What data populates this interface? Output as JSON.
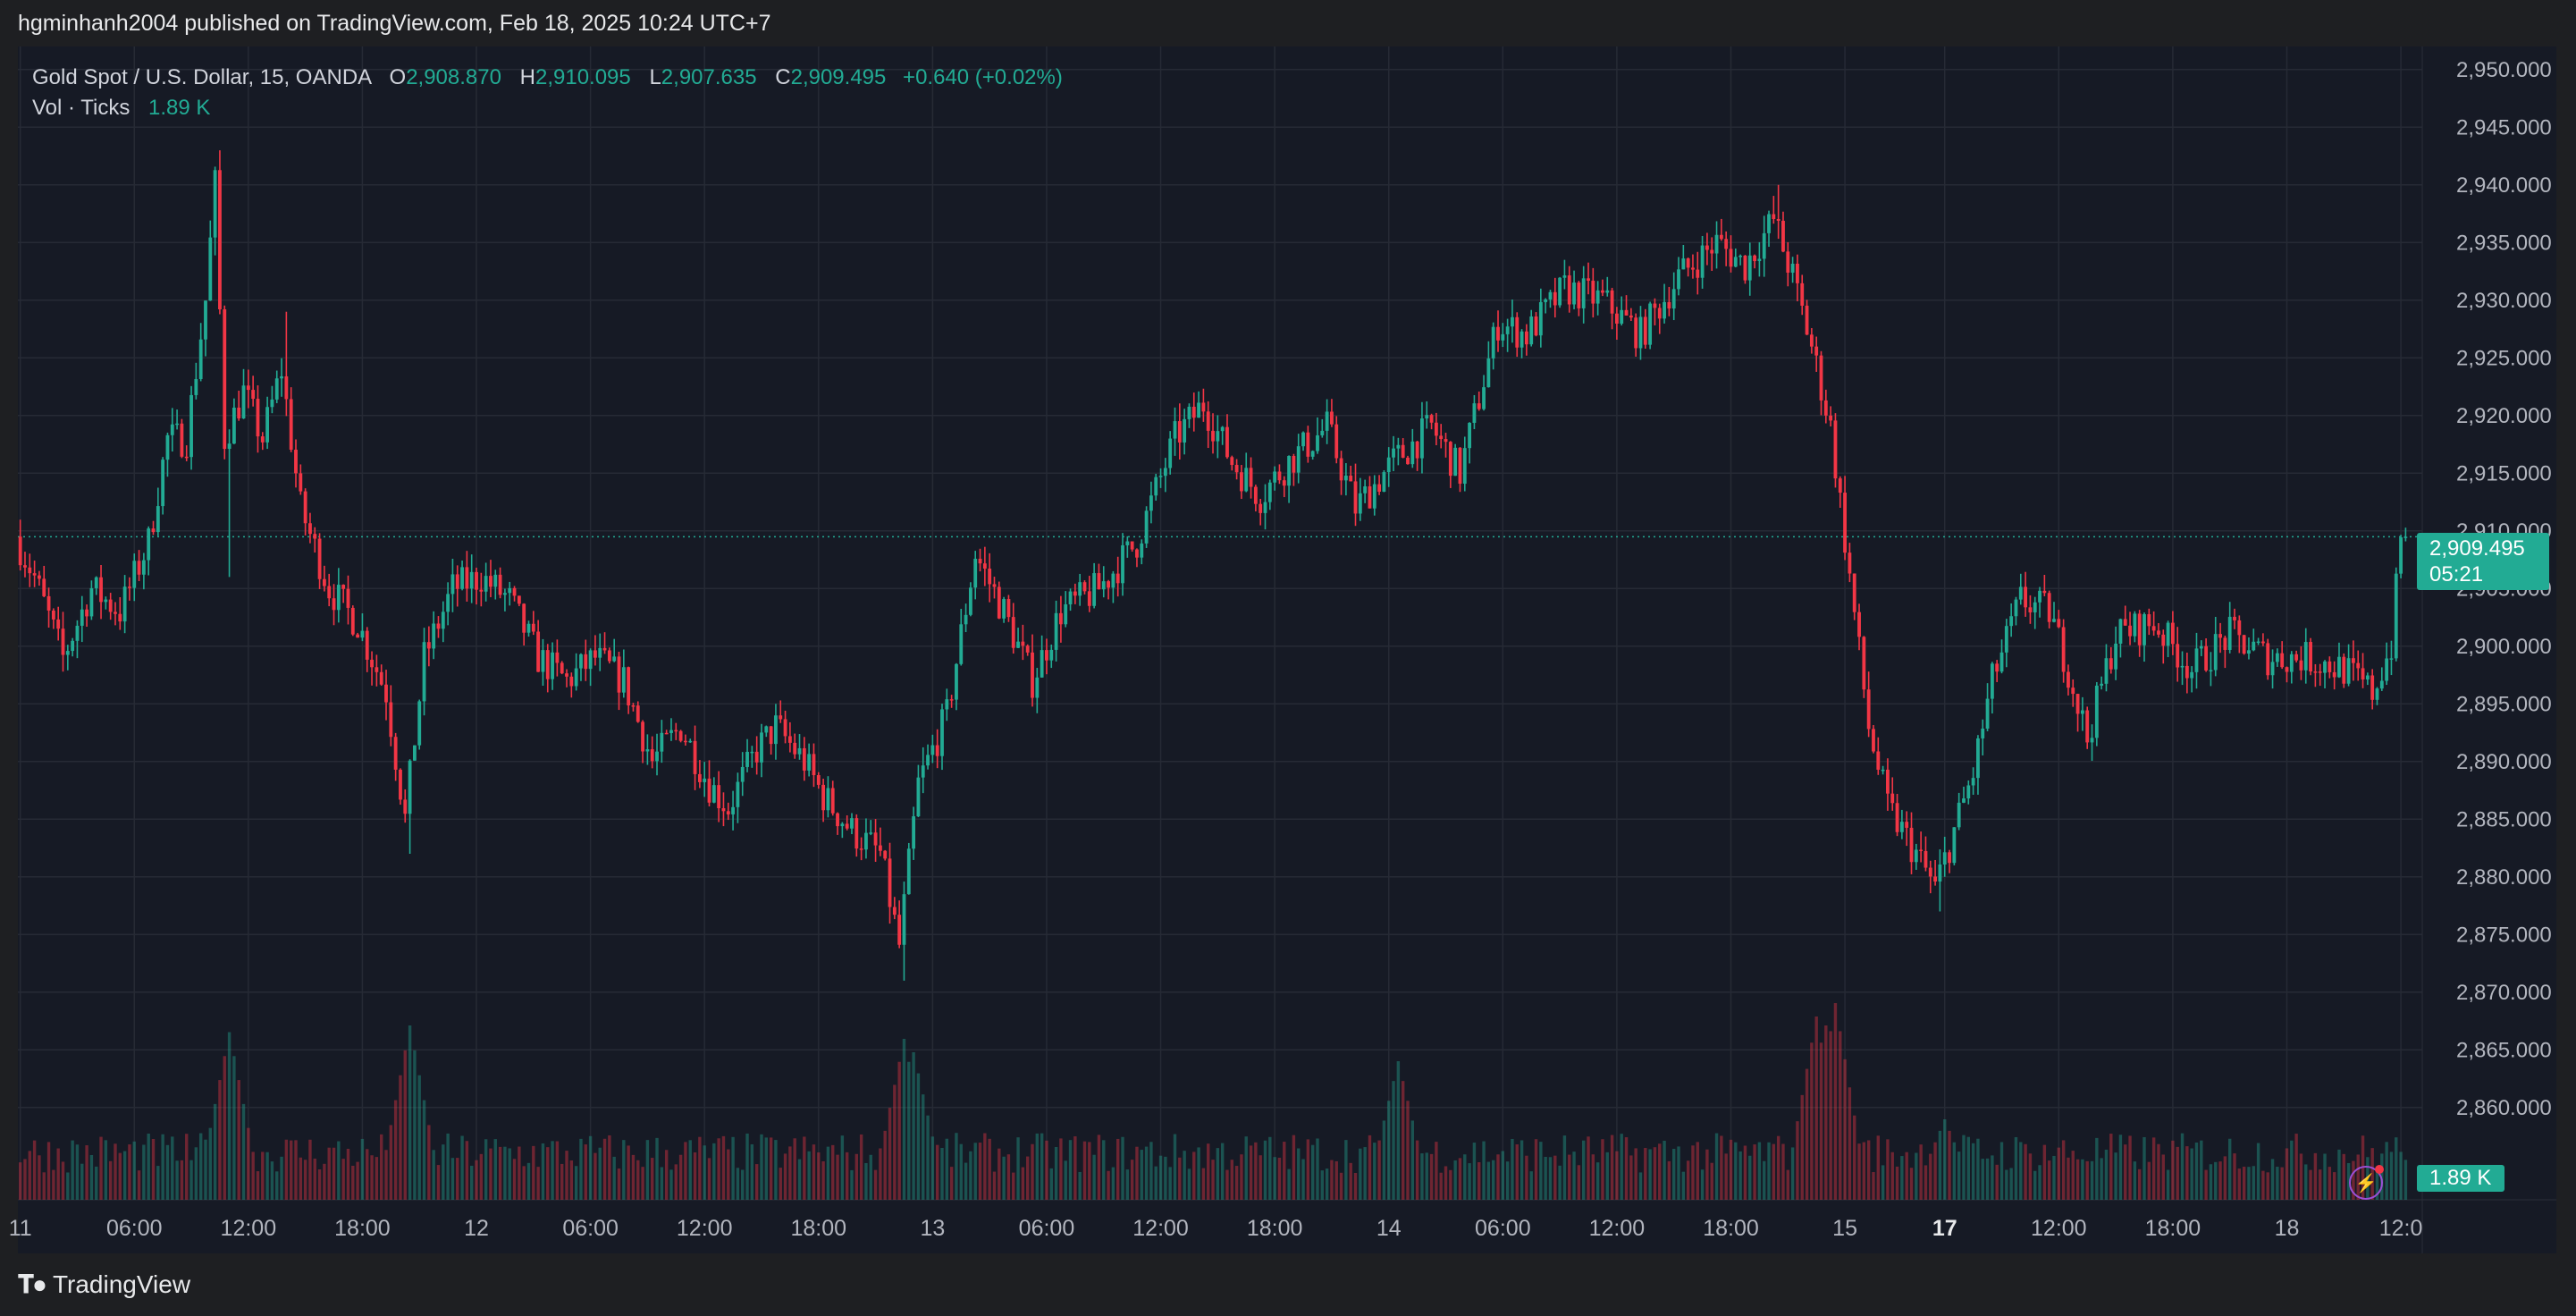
{
  "publish_line": "hgminhanh2004 published on TradingView.com, Feb 18, 2025 10:24 UTC+7",
  "legend": {
    "symbol": "Gold Spot / U.S. Dollar, 15, OANDA",
    "open_label": "O",
    "open": "2,908.870",
    "high_label": "H",
    "high": "2,910.095",
    "low_label": "L",
    "low": "2,907.635",
    "close_label": "C",
    "close": "2,909.495",
    "change": "+0.640 (+0.02%)",
    "volume_label": "Vol · Ticks",
    "volume": "1.89 K"
  },
  "last_price_badge": {
    "price": "2,909.495",
    "countdown": "05:21"
  },
  "volume_badge": "1.89 K",
  "branding": {
    "logo": "TradingView"
  },
  "colors": {
    "up": "#22ab94",
    "down": "#f23645",
    "background": "#161a25",
    "grid": "#262a35",
    "text": "#b2b5be"
  },
  "chart_data": {
    "type": "candlestick",
    "timeframe": "15",
    "price_axis": {
      "ylim": [
        2852,
        2952
      ],
      "ticks": [
        2860,
        2865,
        2870,
        2875,
        2880,
        2885,
        2890,
        2895,
        2900,
        2905,
        2910,
        2915,
        2920,
        2925,
        2930,
        2935,
        2940,
        2945,
        2950
      ],
      "tick_labels": [
        "2,860.000",
        "2,865.000",
        "2,870.000",
        "2,875.000",
        "2,880.000",
        "2,885.000",
        "2,890.000",
        "2,895.000",
        "2,900.000",
        "2,905.000",
        "2,910.000",
        "2,915.000",
        "2,920.000",
        "2,925.000",
        "2,930.000",
        "2,935.000",
        "2,940.000",
        "2,945.000",
        "2,950.000"
      ]
    },
    "time_axis": {
      "labels": [
        "11",
        "06:00",
        "12:00",
        "18:00",
        "12",
        "06:00",
        "12:00",
        "18:00",
        "13",
        "06:00",
        "12:00",
        "18:00",
        "14",
        "06:00",
        "12:00",
        "18:00",
        "15",
        "17",
        "12:00",
        "18:00",
        "18",
        "12:0"
      ],
      "label_positions_bars": [
        0,
        24,
        48,
        72,
        96,
        120,
        144,
        168,
        192,
        216,
        240,
        264,
        288,
        312,
        336,
        360,
        384,
        405,
        429,
        453,
        477,
        501
      ],
      "emphasized": [
        "17"
      ]
    },
    "last_price": 2909.495,
    "price_path": [
      [
        0,
        2909.5
      ],
      [
        4,
        2906
      ],
      [
        10,
        2899
      ],
      [
        16,
        2905
      ],
      [
        22,
        2903
      ],
      [
        28,
        2909
      ],
      [
        32,
        2918
      ],
      [
        36,
        2918
      ],
      [
        40,
        2930
      ],
      [
        42,
        2940
      ],
      [
        44,
        2918
      ],
      [
        48,
        2922
      ],
      [
        52,
        2918
      ],
      [
        56,
        2924
      ],
      [
        60,
        2912
      ],
      [
        66,
        2905
      ],
      [
        72,
        2902
      ],
      [
        78,
        2896
      ],
      [
        82,
        2885
      ],
      [
        86,
        2899
      ],
      [
        92,
        2905
      ],
      [
        98,
        2906
      ],
      [
        104,
        2904
      ],
      [
        110,
        2899
      ],
      [
        116,
        2897
      ],
      [
        122,
        2899
      ],
      [
        128,
        2897
      ],
      [
        134,
        2890
      ],
      [
        140,
        2893
      ],
      [
        146,
        2888
      ],
      [
        150,
        2886
      ],
      [
        156,
        2891
      ],
      [
        160,
        2893
      ],
      [
        166,
        2890
      ],
      [
        170,
        2887
      ],
      [
        176,
        2884
      ],
      [
        182,
        2882
      ],
      [
        186,
        2874
      ],
      [
        190,
        2888
      ],
      [
        196,
        2894
      ],
      [
        202,
        2908
      ],
      [
        208,
        2903
      ],
      [
        214,
        2897
      ],
      [
        220,
        2903
      ],
      [
        228,
        2905
      ],
      [
        236,
        2909
      ],
      [
        244,
        2918
      ],
      [
        250,
        2921
      ],
      [
        256,
        2916
      ],
      [
        262,
        2913
      ],
      [
        268,
        2916
      ],
      [
        276,
        2919
      ],
      [
        282,
        2912
      ],
      [
        290,
        2916
      ],
      [
        298,
        2919
      ],
      [
        304,
        2915
      ],
      [
        312,
        2928
      ],
      [
        318,
        2927
      ],
      [
        326,
        2931
      ],
      [
        334,
        2930
      ],
      [
        342,
        2927
      ],
      [
        350,
        2932
      ],
      [
        358,
        2935
      ],
      [
        364,
        2933
      ],
      [
        370,
        2937
      ],
      [
        374,
        2932
      ],
      [
        378,
        2926
      ],
      [
        382,
        2919
      ],
      [
        386,
        2906
      ],
      [
        390,
        2893
      ],
      [
        394,
        2886
      ],
      [
        400,
        2882
      ],
      [
        404,
        2879
      ],
      [
        408,
        2884
      ],
      [
        412,
        2889
      ],
      [
        416,
        2897
      ],
      [
        422,
        2904
      ],
      [
        428,
        2903
      ],
      [
        432,
        2898
      ],
      [
        436,
        2892
      ],
      [
        442,
        2901
      ],
      [
        450,
        2902
      ],
      [
        458,
        2898
      ],
      [
        466,
        2901
      ],
      [
        474,
        2899
      ],
      [
        482,
        2899
      ],
      [
        490,
        2898
      ],
      [
        496,
        2896
      ],
      [
        500,
        2900
      ],
      [
        502,
        2909.5
      ]
    ],
    "spikes": {
      "high": [
        [
          42,
          2943
        ],
        [
          56,
          2929
        ],
        [
          370,
          2940
        ]
      ],
      "low": [
        [
          44,
          2906
        ],
        [
          82,
          2882
        ],
        [
          186,
          2871
        ],
        [
          404,
          2877
        ]
      ]
    },
    "volume_spikes": [
      [
        44,
        0.75
      ],
      [
        82,
        0.78
      ],
      [
        186,
        0.72
      ],
      [
        188,
        0.66
      ],
      [
        290,
        0.62
      ],
      [
        378,
        0.82
      ],
      [
        380,
        0.78
      ],
      [
        382,
        0.88
      ],
      [
        405,
        0.36
      ],
      [
        500,
        0.25
      ]
    ]
  }
}
